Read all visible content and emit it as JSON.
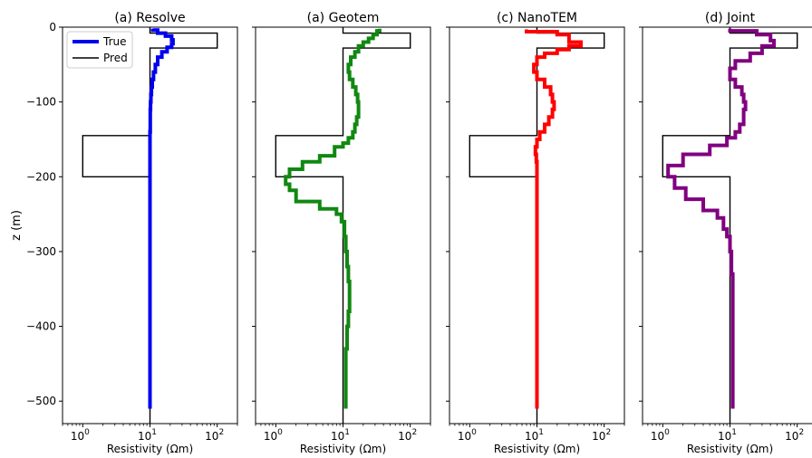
{
  "figure": {
    "ylabel": "z (m)",
    "xlabel": "Resistivity (Ωm)",
    "y_ticks": [
      0,
      -100,
      -200,
      -300,
      -400,
      -500
    ],
    "y_tick_labels": [
      "0",
      "−100",
      "−200",
      "−300",
      "−400",
      "−500"
    ],
    "x_ticks": [
      1,
      10,
      100
    ],
    "x_tick_base": "10",
    "x_tick_exponents": [
      "0",
      "1",
      "2"
    ]
  },
  "legend": {
    "true_label": "True",
    "pred_label": "Pred"
  },
  "colors": {
    "resolve": "#0000ee",
    "geotem": "#118811",
    "nanotem": "#ff0000",
    "joint": "#800080",
    "true_model": "#000000"
  },
  "chart_data": [
    {
      "type": "line",
      "title": "(a) Resolve",
      "xscale": "log",
      "xlim": [
        0.5,
        200
      ],
      "ylim": [
        -530,
        0
      ],
      "grid": false,
      "legend_position": "top-left",
      "series": [
        {
          "name": "True",
          "color_key": "true_model",
          "x": [
            10,
            10,
            100,
            100,
            10,
            10,
            1,
            1,
            10,
            10
          ],
          "y": [
            0,
            -8,
            -8,
            -28,
            -28,
            -145,
            -145,
            -200,
            -200,
            -530
          ]
        },
        {
          "name": "Pred",
          "color_key": "resolve",
          "x": [
            11,
            13,
            17,
            21,
            22,
            21,
            18,
            15,
            13,
            12,
            11.3,
            10.8,
            10.5,
            10.3,
            10.2,
            10.1,
            10.1,
            10,
            10,
            10,
            10
          ],
          "y": [
            -2,
            -4,
            -8,
            -12,
            -17,
            -22,
            -27,
            -33,
            -40,
            -50,
            -60,
            -70,
            -80,
            -90,
            -100,
            -110,
            -120,
            -140,
            -160,
            -200,
            -510
          ]
        }
      ]
    },
    {
      "type": "line",
      "title": "(a) Geotem",
      "xscale": "log",
      "xlim": [
        0.5,
        200
      ],
      "ylim": [
        -530,
        0
      ],
      "grid": false,
      "series": [
        {
          "name": "True",
          "color_key": "true_model",
          "x": [
            10,
            10,
            100,
            100,
            10,
            10,
            1,
            1,
            10,
            10
          ],
          "y": [
            0,
            -8,
            -8,
            -28,
            -28,
            -145,
            -145,
            -200,
            -200,
            -530
          ]
        },
        {
          "name": "Pred",
          "color_key": "geotem",
          "x": [
            35,
            32,
            28,
            24,
            20,
            17,
            15,
            13,
            12,
            12.5,
            14,
            15.5,
            16.5,
            17,
            17,
            16,
            15,
            14,
            12,
            10,
            7.5,
            4.5,
            2.5,
            1.6,
            1.4,
            1.6,
            2,
            4.5,
            8,
            9.5,
            10.5,
            11,
            11.5,
            12,
            12.5,
            12.5,
            12,
            11.5,
            11,
            11
          ],
          "y": [
            -2,
            -5,
            -10,
            -15,
            -20,
            -25,
            -33,
            -40,
            -50,
            -60,
            -70,
            -80,
            -90,
            -100,
            -110,
            -120,
            -130,
            -140,
            -148,
            -155,
            -160,
            -172,
            -180,
            -190,
            -200,
            -210,
            -218,
            -233,
            -243,
            -250,
            -260,
            -280,
            -300,
            -320,
            -340,
            -360,
            -380,
            -400,
            -430,
            -510
          ]
        }
      ]
    },
    {
      "type": "line",
      "title": "(c) NanoTEM",
      "xscale": "log",
      "xlim": [
        0.5,
        200
      ],
      "ylim": [
        -530,
        0
      ],
      "grid": false,
      "series": [
        {
          "name": "True",
          "color_key": "true_model",
          "x": [
            10,
            10,
            100,
            100,
            10,
            10,
            1,
            1,
            10,
            10
          ],
          "y": [
            0,
            -8,
            -8,
            -28,
            -28,
            -145,
            -145,
            -200,
            -200,
            -530
          ]
        },
        {
          "name": "Pred",
          "color_key": "nanotem",
          "x": [
            7,
            20,
            30,
            45,
            30,
            20,
            13,
            10,
            9,
            10,
            13,
            16,
            17,
            18,
            17,
            15,
            13,
            11,
            10,
            9.5,
            9.8,
            10,
            10,
            10,
            10,
            10,
            10
          ],
          "y": [
            -3,
            -6,
            -10,
            -20,
            -25,
            -30,
            -35,
            -40,
            -50,
            -60,
            -70,
            -80,
            -90,
            -100,
            -110,
            -120,
            -130,
            -140,
            -150,
            -160,
            -170,
            -180,
            -200,
            -250,
            -300,
            -400,
            -510
          ]
        }
      ]
    },
    {
      "type": "line",
      "title": "(d) Joint",
      "xscale": "log",
      "xlim": [
        0.5,
        200
      ],
      "ylim": [
        -530,
        0
      ],
      "grid": false,
      "series": [
        {
          "name": "True",
          "color_key": "true_model",
          "x": [
            10,
            10,
            100,
            100,
            10,
            10,
            1,
            1,
            10,
            10
          ],
          "y": [
            0,
            -8,
            -8,
            -28,
            -28,
            -145,
            -145,
            -200,
            -200,
            -530
          ]
        },
        {
          "name": "Pred",
          "color_key": "joint",
          "x": [
            10,
            25,
            40,
            45,
            30,
            20,
            12,
            10,
            12,
            15,
            16,
            17,
            16,
            14,
            12,
            9,
            5,
            2,
            1.2,
            1.5,
            2.2,
            4,
            6.5,
            8,
            9,
            10,
            10.5,
            11,
            11,
            11,
            11
          ],
          "y": [
            -2,
            -5,
            -10,
            -18,
            -25,
            -35,
            -45,
            -55,
            -70,
            -80,
            -90,
            -100,
            -110,
            -130,
            -140,
            -148,
            -158,
            -170,
            -185,
            -200,
            -215,
            -230,
            -245,
            -255,
            -270,
            -280,
            -300,
            -330,
            -400,
            -460,
            -510
          ]
        }
      ]
    }
  ]
}
